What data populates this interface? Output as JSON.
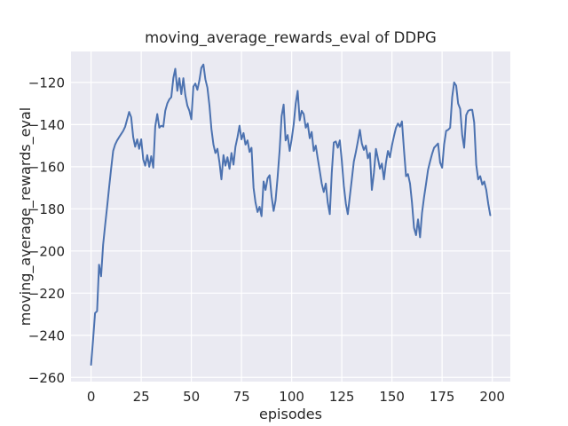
{
  "figure": {
    "background_color": "#ffffff"
  },
  "chart_data": {
    "type": "line",
    "title": "moving_average_rewards_eval of DDPG",
    "xlabel": "episodes",
    "ylabel": "moving_average_rewards_eval",
    "style": "seaborn-darkgrid",
    "grid": true,
    "legend": "none",
    "axes_background_color": "#eaeaf2",
    "grid_color": "#ffffff",
    "line_color": "#4c72b0",
    "text_color": "#262626",
    "xlim": [
      -10,
      209
    ],
    "ylim": [
      -262,
      -105.3
    ],
    "xticks": [
      0,
      25,
      50,
      75,
      100,
      125,
      150,
      175,
      200
    ],
    "yticks": [
      -260,
      -240,
      -220,
      -200,
      -180,
      -160,
      -140,
      -120
    ],
    "series": [
      {
        "name": "moving_average_rewards_eval",
        "x_start": 0,
        "x_step": 1,
        "x_meaning": "episode index 0..199",
        "values": [
          -254,
          -242,
          -229.5,
          -228.5,
          -206.5,
          -212,
          -197,
          -188,
          -179,
          -170,
          -161,
          -152.5,
          -149.5,
          -147.5,
          -146,
          -144.5,
          -143,
          -141,
          -137.5,
          -134,
          -136.5,
          -146,
          -150.5,
          -147,
          -151.5,
          -147,
          -156.5,
          -159.5,
          -154.5,
          -160,
          -155,
          -160.5,
          -141,
          -135,
          -141.5,
          -140.5,
          -141,
          -133.5,
          -130,
          -128,
          -127,
          -118,
          -113.5,
          -124,
          -118,
          -125.5,
          -118,
          -126,
          -131,
          -133.5,
          -137.5,
          -122,
          -120.5,
          -123.5,
          -119,
          -113,
          -111.5,
          -118.5,
          -122.5,
          -131,
          -142,
          -149.5,
          -153.5,
          -151.5,
          -158,
          -166,
          -154.5,
          -159.5,
          -155.5,
          -161,
          -153.5,
          -159,
          -150.5,
          -146,
          -140.5,
          -147,
          -144,
          -149.5,
          -147.5,
          -153,
          -151,
          -170,
          -177,
          -181.5,
          -179,
          -183.5,
          -167,
          -171,
          -165.5,
          -164,
          -174,
          -181,
          -176,
          -165,
          -152,
          -136,
          -130.5,
          -147.5,
          -145,
          -152.5,
          -147,
          -140,
          -130,
          -124,
          -138,
          -133.5,
          -135,
          -141.5,
          -139.5,
          -146.5,
          -143.5,
          -152.5,
          -150,
          -156,
          -162,
          -168,
          -172,
          -168,
          -177,
          -182.5,
          -163,
          -148.5,
          -148,
          -151,
          -147.5,
          -157,
          -169,
          -177.5,
          -182.5,
          -174,
          -166,
          -157.5,
          -153,
          -148,
          -142.5,
          -149,
          -152,
          -150,
          -156,
          -153.5,
          -171,
          -163,
          -151.5,
          -156,
          -161,
          -158.5,
          -166,
          -158,
          -152.5,
          -155.5,
          -150,
          -145.5,
          -141.5,
          -139.5,
          -141,
          -138.5,
          -152,
          -164.5,
          -163.5,
          -168,
          -177,
          -189,
          -192.5,
          -185,
          -193.5,
          -182,
          -174.5,
          -168,
          -161.5,
          -157.5,
          -154,
          -151,
          -150,
          -149,
          -158,
          -160.5,
          -149.5,
          -143,
          -142.5,
          -141.5,
          -127,
          -120,
          -121.5,
          -130,
          -132.5,
          -145,
          -151,
          -135.5,
          -133.5,
          -133,
          -133,
          -139,
          -159,
          -166,
          -164.5,
          -168.5,
          -167,
          -171,
          -177.5,
          -183
        ]
      }
    ]
  }
}
